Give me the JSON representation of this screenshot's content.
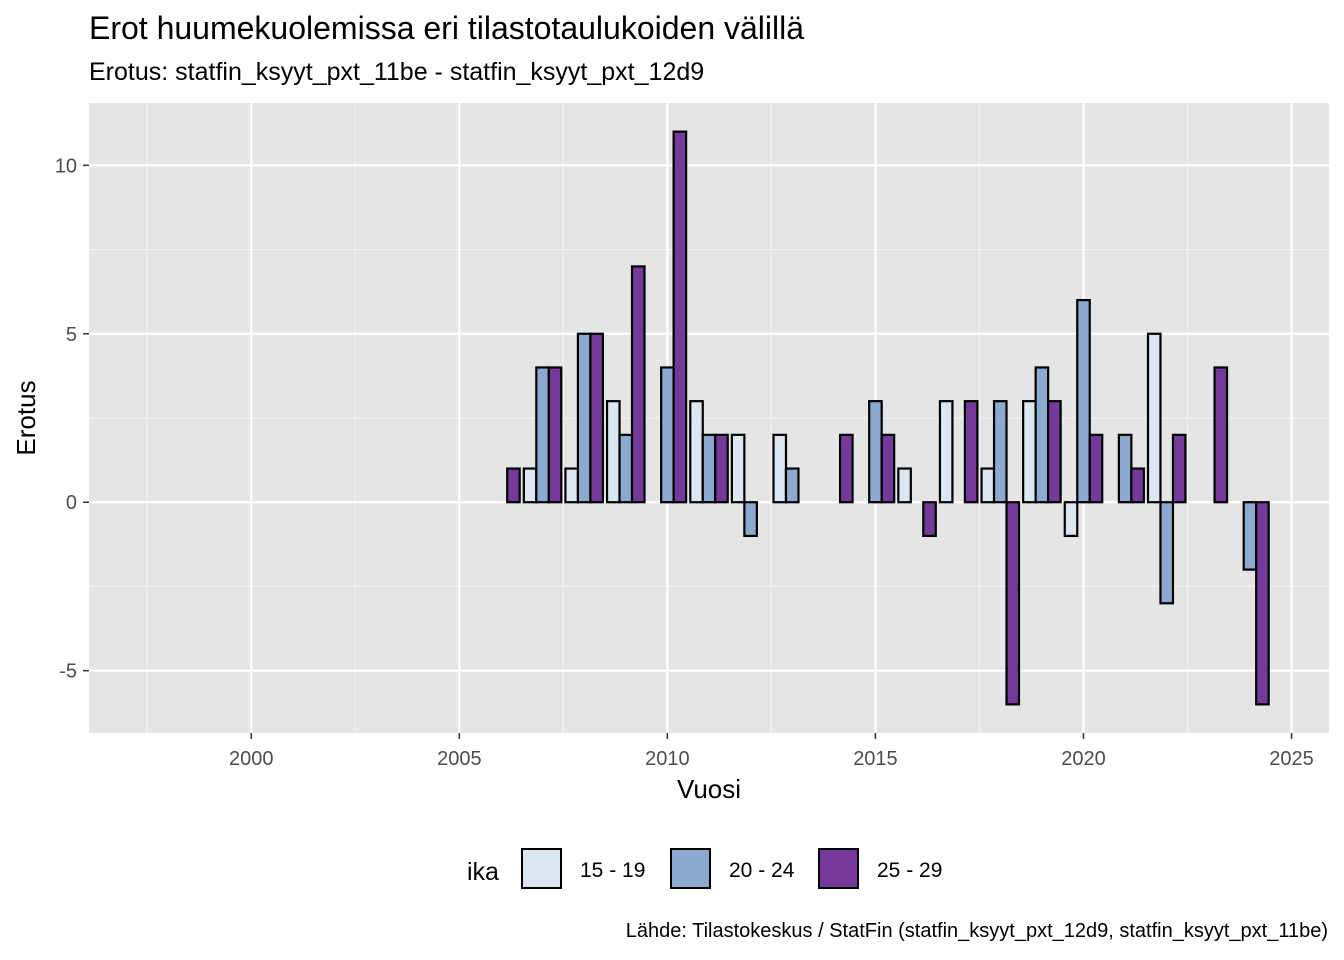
{
  "chart_data": {
    "type": "bar",
    "title": "Erot huumekuolemissa eri tilastotaulukoiden välillä",
    "subtitle": "Erotus: statfin_ksyyt_pxt_11be - statfin_ksyyt_pxt_12d9",
    "caption": "Lähde: Tilastokeskus / StatFin (statfin_ksyyt_pxt_12d9, statfin_ksyyt_pxt_11be)",
    "xlabel": "Vuosi",
    "ylabel": "Erotus",
    "xlim": [
      1996.1,
      2025.9
    ],
    "ylim": [
      -6.85,
      11.85
    ],
    "x_ticks": [
      2000,
      2005,
      2010,
      2015,
      2020,
      2025
    ],
    "y_ticks": [
      -5,
      0,
      5,
      10
    ],
    "y_tick_labels": [
      "-5",
      "0",
      "5",
      "10"
    ],
    "grid": true,
    "legend": {
      "title": "ika",
      "position": "bottom",
      "entries": [
        "15 - 19",
        "20 - 24",
        "25 - 29"
      ]
    },
    "x": [
      2006,
      2007,
      2008,
      2009,
      2010,
      2011,
      2012,
      2013,
      2014,
      2015,
      2016,
      2017,
      2018,
      2019,
      2020,
      2021,
      2022,
      2023,
      2024
    ],
    "series": [
      {
        "name": "15 - 19",
        "color": "#dbe6f0",
        "values": [
          0,
          1,
          1,
          3,
          0,
          3,
          2,
          2,
          0,
          0,
          1,
          3,
          1,
          3,
          -1,
          0,
          5,
          0,
          0
        ]
      },
      {
        "name": "20 - 24",
        "color": "#8ca9cf",
        "values": [
          0,
          4,
          5,
          2,
          4,
          2,
          -1,
          1,
          0,
          3,
          0,
          0,
          3,
          4,
          6,
          2,
          -3,
          0,
          -2
        ]
      },
      {
        "name": "25 - 29",
        "color": "#74399a",
        "values": [
          1,
          4,
          5,
          7,
          11,
          2,
          0,
          0,
          2,
          2,
          -1,
          3,
          -6,
          3,
          2,
          1,
          2,
          4,
          -6
        ]
      }
    ]
  }
}
